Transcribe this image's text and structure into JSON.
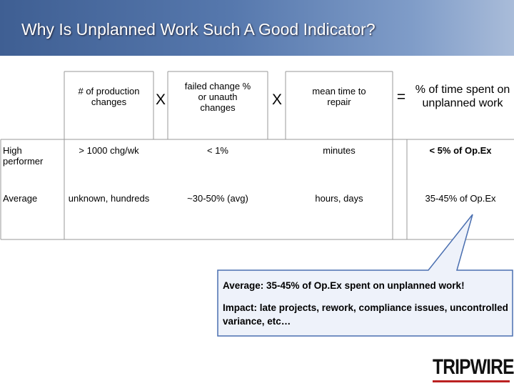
{
  "header": {
    "title": "Why Is Unplanned Work Such A Good Indicator?"
  },
  "table": {
    "headers": [
      "# of production changes",
      "failed change % or unauth changes",
      "mean time to repair",
      "% of time spent on unplanned work"
    ],
    "operators": [
      "X",
      "X",
      "="
    ],
    "rows": [
      [
        "High performer",
        "> 1000 chg/wk",
        "< 1%",
        "minutes",
        "< 5% of Op.Ex"
      ],
      [
        "Average",
        "unknown, hundreds",
        "~30-50% (avg)",
        "hours, days",
        "35-45% of Op.Ex"
      ]
    ]
  },
  "callout": {
    "lines": [
      "Average: 35-45% of Op.Ex spent on unplanned work!",
      "Impact: late projects, rework, compliance issues, uncontrolled variance, etc…"
    ]
  },
  "logo": {
    "text": "TRIPWIRE"
  }
}
